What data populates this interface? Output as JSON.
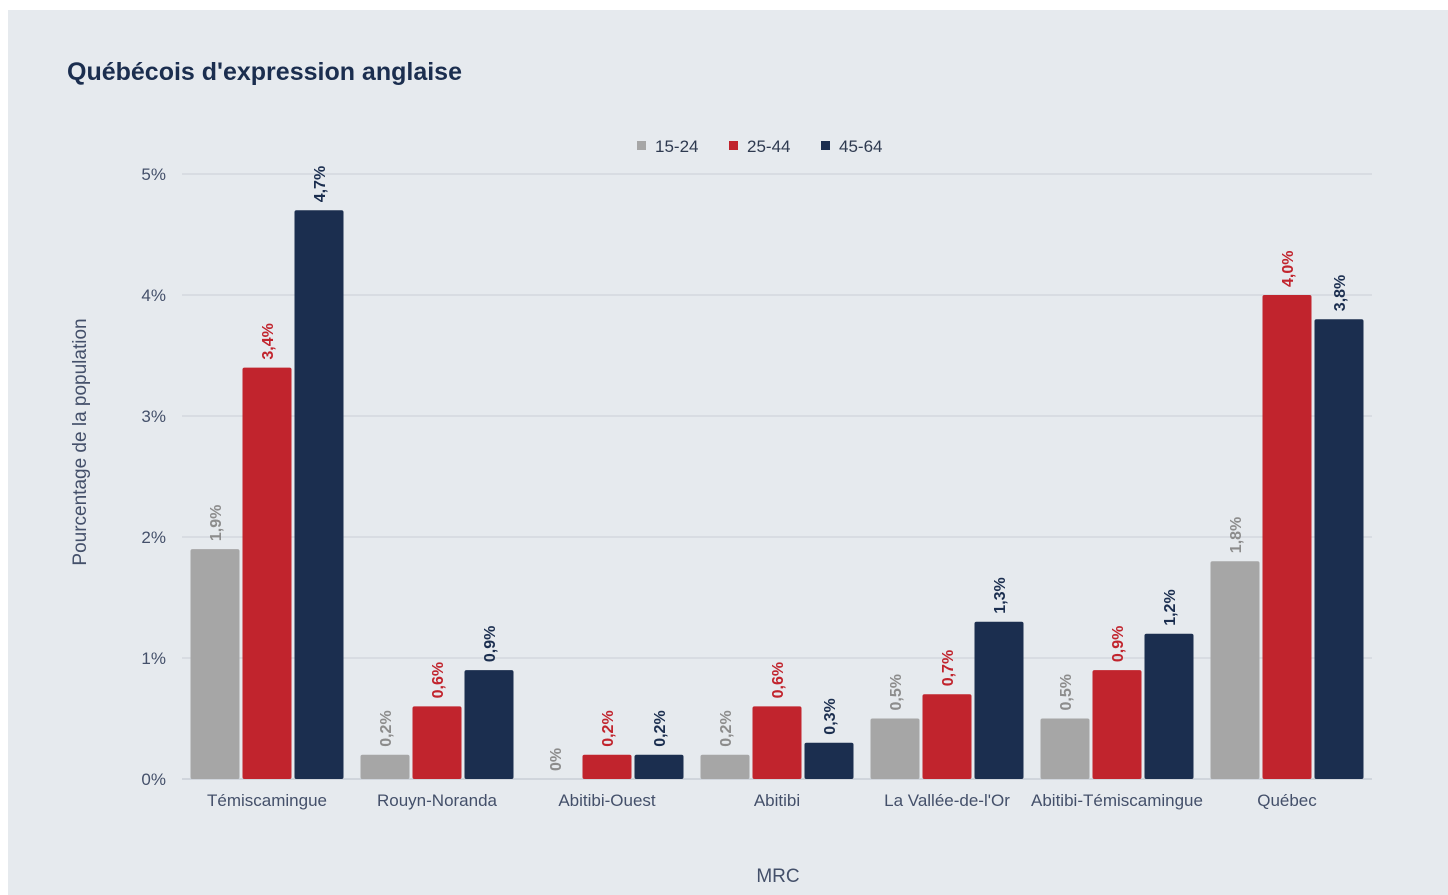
{
  "chart_data": {
    "type": "bar",
    "title": "Québécois d'expression anglaise",
    "xlabel": "MRC",
    "ylabel": "Pourcentage de la population",
    "categories": [
      "Témiscamingue",
      "Rouyn-Noranda",
      "Abitibi-Ouest",
      "Abitibi",
      "La Vallée-de-l'Or",
      "Abitibi-Témiscamingue",
      "Québec"
    ],
    "ylim": [
      0,
      5
    ],
    "yticks": [
      "0%",
      "1%",
      "2%",
      "3%",
      "4%",
      "5%"
    ],
    "grid": true,
    "legend_position": "top-center",
    "series": [
      {
        "name": "15-24",
        "color": "#a6a6a6",
        "label_color": "#8c8c8c",
        "values": [
          1.9,
          0.2,
          0,
          0.2,
          0.5,
          0.5,
          1.8
        ],
        "labels": [
          "1,9%",
          "0,2%",
          "0%",
          "0,2%",
          "0,5%",
          "0,5%",
          "1,8%"
        ]
      },
      {
        "name": "25-44",
        "color": "#c1242d",
        "label_color": "#c1242d",
        "values": [
          3.4,
          0.6,
          0.2,
          0.6,
          0.7,
          0.9,
          4.0
        ],
        "labels": [
          "3,4%",
          "0,6%",
          "0,2%",
          "0,6%",
          "0,7%",
          "0,9%",
          "4,0%"
        ]
      },
      {
        "name": "45-64",
        "color": "#1b2e4f",
        "label_color": "#1b2e4f",
        "values": [
          4.7,
          0.9,
          0.2,
          0.3,
          1.3,
          1.2,
          3.8
        ],
        "labels": [
          "4,7%",
          "0,9%",
          "0,2%",
          "0,3%",
          "1,3%",
          "1,2%",
          "3,8%"
        ]
      }
    ]
  }
}
